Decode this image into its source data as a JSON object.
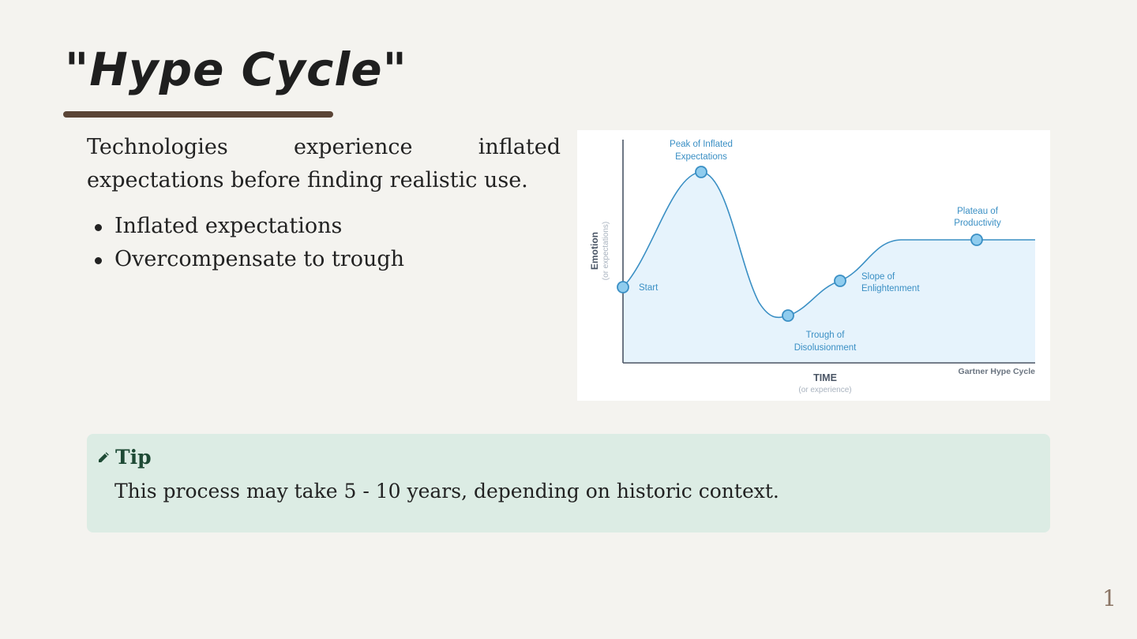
{
  "slide": {
    "title": "\"Hype Cycle\"",
    "intro": "Technologies experience inflated expectations before finding realistic use.",
    "bullets": [
      "Inflated expectations",
      "Overcompensate to trough"
    ],
    "callout": {
      "title": "Tip",
      "icon": "pencil-icon",
      "body": "This process may take 5 - 10 years, depending on historic context."
    },
    "page_number": "1"
  },
  "diagram": {
    "y_axis_label": "Emotion",
    "y_axis_sublabel": "(or expectations)",
    "x_axis_label": "TIME",
    "x_axis_sublabel": "(or experience)",
    "credit": "Gartner Hype Cycle",
    "points": {
      "start": "Start",
      "peak_line1": "Peak of Inflated",
      "peak_line2": "Expectations",
      "trough_line1": "Trough of",
      "trough_line2": "Disolusionment",
      "slope_line1": "Slope of",
      "slope_line2": "Enlightenment",
      "plateau_line1": "Plateau of",
      "plateau_line2": "Productivity"
    },
    "colors": {
      "curve": "#3a8fc4",
      "fill": "#e6f3fc",
      "label": "#3a8fc4",
      "marker_fill": "#8fccee",
      "axis": "#4a5565"
    }
  }
}
